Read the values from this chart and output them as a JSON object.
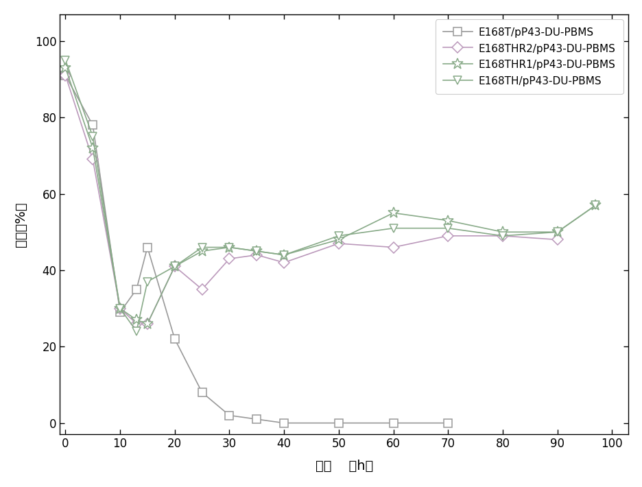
{
  "series": {
    "E168T": {
      "label": "E168T/pP43-DU-PBMS",
      "x": [
        0,
        5,
        10,
        13,
        15,
        20,
        25,
        30,
        35,
        40,
        50,
        60,
        70
      ],
      "y": [
        91,
        78,
        29,
        35,
        46,
        22,
        8,
        2,
        1,
        0,
        0,
        0,
        0
      ],
      "marker": "s",
      "color": "#999999",
      "linestyle": "-"
    },
    "E168THR2": {
      "label": "E168THR2/pP43-DU-PBMS",
      "x": [
        0,
        5,
        10,
        13,
        15,
        20,
        25,
        30,
        35,
        40,
        50,
        60,
        70,
        80,
        90
      ],
      "y": [
        91,
        69,
        30,
        26,
        26,
        41,
        35,
        43,
        44,
        42,
        47,
        46,
        49,
        49,
        48
      ],
      "marker": "D",
      "color": "#bb99bb",
      "linestyle": "-"
    },
    "E168THR1": {
      "label": "E168THR1/pP43-DU-PBMS",
      "x": [
        0,
        5,
        10,
        13,
        15,
        20,
        25,
        30,
        35,
        40,
        50,
        60,
        70,
        80,
        90,
        97
      ],
      "y": [
        93,
        72,
        30,
        27,
        26,
        41,
        45,
        46,
        45,
        44,
        48,
        55,
        53,
        50,
        50,
        57
      ],
      "marker": "*",
      "color": "#88aa88",
      "linestyle": "-"
    },
    "E168TH": {
      "label": "E168TH/pP43-DU-PBMS",
      "x": [
        0,
        5,
        10,
        13,
        15,
        20,
        25,
        30,
        35,
        40,
        50,
        60,
        70,
        80,
        90,
        97
      ],
      "y": [
        95,
        75,
        30,
        24,
        37,
        41,
        46,
        46,
        45,
        44,
        49,
        51,
        51,
        49,
        50,
        57
      ],
      "marker": "v",
      "color": "#88aa88",
      "linestyle": "-"
    }
  },
  "xlabel_cn": "时间",
  "xlabel_en": "（h）",
  "ylabel": "溶氧（%）",
  "xlim": [
    -1,
    103
  ],
  "ylim": [
    -3,
    107
  ],
  "xticks": [
    0,
    10,
    20,
    30,
    40,
    50,
    60,
    70,
    80,
    90,
    100
  ],
  "yticks": [
    0,
    20,
    40,
    60,
    80,
    100
  ],
  "background_color": "#ffffff",
  "marker_size": 8,
  "star_size": 12,
  "linewidth": 1.2
}
